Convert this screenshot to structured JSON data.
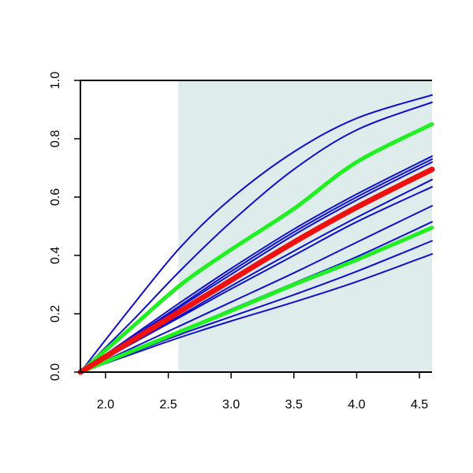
{
  "chart_data": {
    "type": "line",
    "xlim": [
      1.8,
      4.6
    ],
    "ylim": [
      0.0,
      1.0
    ],
    "x_ticks": [
      2.0,
      2.5,
      3.0,
      3.5,
      4.0,
      4.5
    ],
    "x_tick_labels": [
      "2.0",
      "2.5",
      "3.0",
      "3.5",
      "4.0",
      "4.5"
    ],
    "y_ticks": [
      0.0,
      0.2,
      0.4,
      0.6,
      0.8,
      1.0
    ],
    "y_tick_labels": [
      "0.0",
      "0.2",
      "0.4",
      "0.6",
      "0.8",
      "1.0"
    ],
    "grid": false,
    "shaded_region": {
      "x_from": 2.58,
      "x_to": 4.6,
      "color": "#dfecec"
    },
    "colors": {
      "blue": "#1010cc",
      "green": "#1ff01f",
      "red": "#f01010",
      "axis": "#000000"
    },
    "series": [
      {
        "color": "blue",
        "width": 2,
        "x": [
          1.8,
          2.2,
          2.6,
          3.0,
          3.5,
          4.0,
          4.6
        ],
        "y": [
          0.0,
          0.22,
          0.43,
          0.595,
          0.755,
          0.87,
          0.95
        ]
      },
      {
        "color": "blue",
        "width": 2,
        "x": [
          1.8,
          2.2,
          2.6,
          3.0,
          3.5,
          4.0,
          4.6
        ],
        "y": [
          0.0,
          0.17,
          0.35,
          0.515,
          0.695,
          0.83,
          0.925
        ]
      },
      {
        "color": "green",
        "width": 5,
        "x": [
          1.8,
          2.2,
          2.6,
          3.0,
          3.5,
          4.0,
          4.6
        ],
        "y": [
          0.0,
          0.15,
          0.3,
          0.42,
          0.56,
          0.72,
          0.85
        ]
      },
      {
        "color": "blue",
        "width": 2,
        "x": [
          1.8,
          2.2,
          2.6,
          3.0,
          3.5,
          4.0,
          4.6
        ],
        "y": [
          0.0,
          0.12,
          0.24,
          0.355,
          0.49,
          0.61,
          0.74
        ]
      },
      {
        "color": "blue",
        "width": 2,
        "x": [
          1.8,
          2.2,
          2.6,
          3.0,
          3.5,
          4.0,
          4.6
        ],
        "y": [
          0.0,
          0.115,
          0.23,
          0.345,
          0.48,
          0.6,
          0.73
        ]
      },
      {
        "color": "blue",
        "width": 2,
        "x": [
          1.8,
          2.2,
          2.6,
          3.0,
          3.5,
          4.0,
          4.6
        ],
        "y": [
          0.0,
          0.11,
          0.225,
          0.335,
          0.47,
          0.59,
          0.72
        ]
      },
      {
        "color": "red",
        "width": 7,
        "x": [
          1.8,
          2.2,
          2.6,
          3.0,
          3.5,
          4.0,
          4.6
        ],
        "y": [
          0.0,
          0.105,
          0.21,
          0.315,
          0.445,
          0.565,
          0.695
        ]
      },
      {
        "color": "blue",
        "width": 2,
        "x": [
          1.8,
          2.2,
          2.6,
          3.0,
          3.5,
          4.0,
          4.6
        ],
        "y": [
          0.0,
          0.1,
          0.195,
          0.295,
          0.415,
          0.53,
          0.66
        ]
      },
      {
        "color": "blue",
        "width": 2,
        "x": [
          1.8,
          2.2,
          2.6,
          3.0,
          3.5,
          4.0,
          4.6
        ],
        "y": [
          0.0,
          0.095,
          0.19,
          0.285,
          0.4,
          0.515,
          0.635
        ]
      },
      {
        "color": "blue",
        "width": 2,
        "x": [
          1.8,
          2.2,
          2.6,
          3.0,
          3.5,
          4.0,
          4.6
        ],
        "y": [
          0.0,
          0.08,
          0.16,
          0.24,
          0.34,
          0.445,
          0.57
        ]
      },
      {
        "color": "green",
        "width": 5,
        "x": [
          1.8,
          2.2,
          2.6,
          3.0,
          3.5,
          4.0,
          4.6
        ],
        "y": [
          0.0,
          0.07,
          0.14,
          0.21,
          0.3,
          0.385,
          0.495
        ]
      },
      {
        "color": "blue",
        "width": 2,
        "x": [
          1.8,
          2.2,
          2.6,
          3.0,
          3.5,
          4.0,
          4.6
        ],
        "y": [
          0.0,
          0.07,
          0.14,
          0.215,
          0.305,
          0.395,
          0.515
        ]
      },
      {
        "color": "blue",
        "width": 2,
        "x": [
          1.8,
          2.2,
          2.6,
          3.0,
          3.5,
          4.0,
          4.6
        ],
        "y": [
          0.0,
          0.065,
          0.13,
          0.19,
          0.265,
          0.345,
          0.45
        ]
      },
      {
        "color": "blue",
        "width": 2,
        "x": [
          1.8,
          2.2,
          2.6,
          3.0,
          3.5,
          4.0,
          4.6
        ],
        "y": [
          0.0,
          0.06,
          0.12,
          0.175,
          0.24,
          0.31,
          0.405
        ]
      }
    ]
  }
}
